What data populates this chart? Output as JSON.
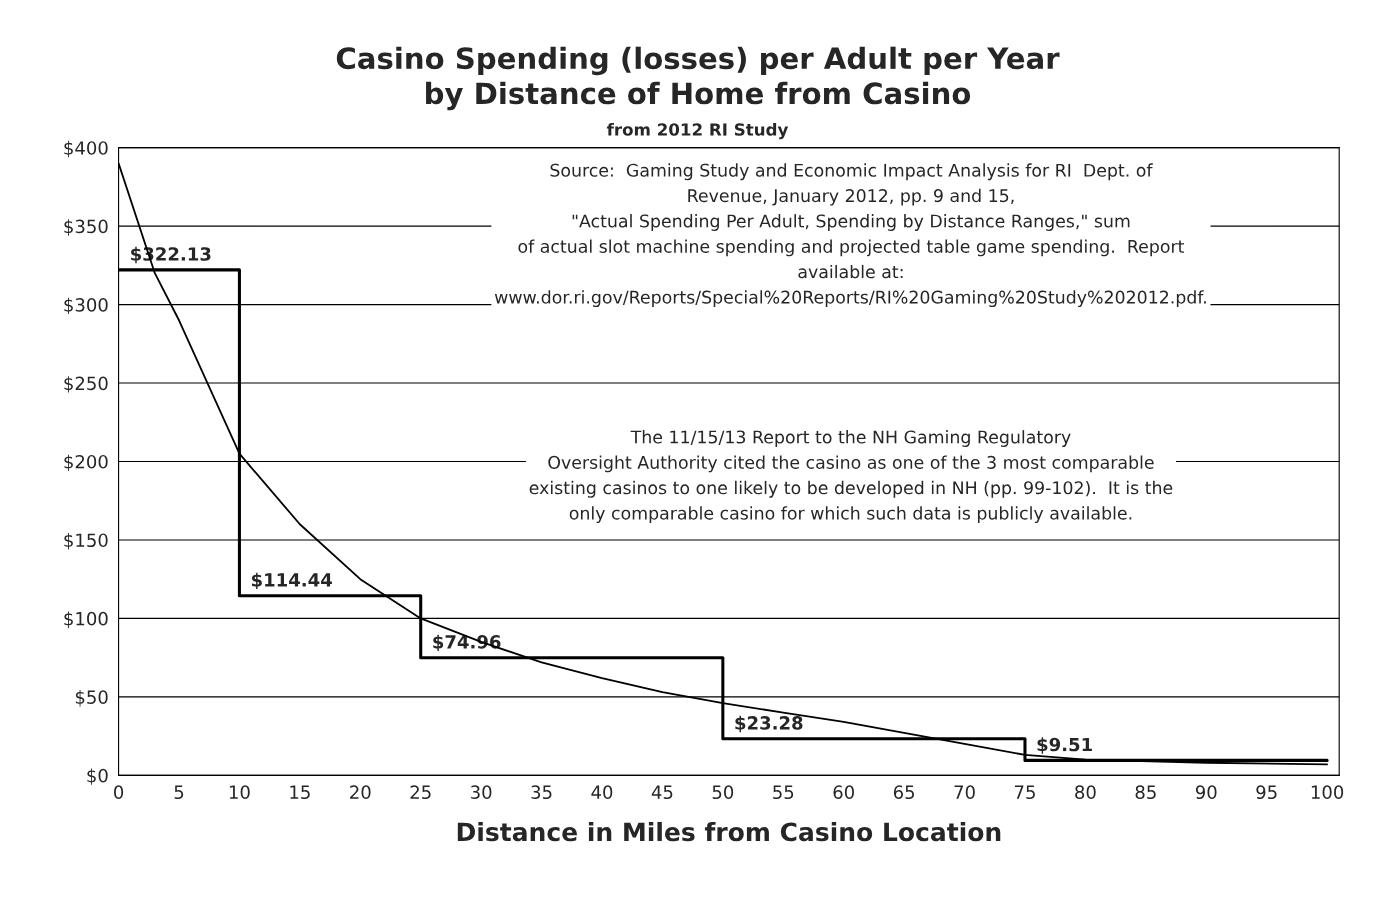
{
  "chart_data": {
    "type": "line",
    "title": "Casino Spending (losses) per Adult per Year\nby Distance of Home from Casino",
    "subtitle": "from 2012 RI Study",
    "xlabel": "Distance in Miles from Casino Location",
    "series": [
      {
        "type": "step",
        "color": "#000000",
        "x": [
          0,
          10,
          25,
          50,
          75,
          100
        ],
        "values": [
          322.13,
          114.44,
          74.96,
          23.28,
          9.51,
          9.51
        ],
        "value_labels": [
          "$322.13",
          "$114.44",
          "$74.96",
          "$23.28",
          "$9.51",
          null
        ]
      },
      {
        "color": "#000000",
        "x": [
          0,
          3,
          5,
          10,
          15,
          20,
          25,
          30,
          35,
          40,
          45,
          50,
          55,
          60,
          65,
          70,
          75,
          80,
          90,
          100
        ],
        "values": [
          390,
          320,
          290,
          205,
          160,
          125,
          100,
          85,
          72,
          62,
          53,
          46,
          40,
          34,
          27,
          20,
          13,
          10,
          8,
          7
        ]
      }
    ],
    "annotations": [
      "Source:  Gaming Study and Economic Impact Analysis for RI  Dept. of\nRevenue, January 2012, pp. 9 and 15,\n\"Actual Spending Per Adult, Spending by Distance Ranges,\" sum\nof actual slot machine spending and projected table game spending.  Report\navailable at:\nwww.dor.ri.gov/Reports/Special%20Reports/RI%20Gaming%20Study%202012.pdf.",
      "The 11/15/13 Report to the NH Gaming Regulatory\nOversight Authority cited the casino as one of the 3 most comparable\nexisting casinos to one likely to be developed in NH (pp. 99-102).  It is the\nonly comparable casino for which such data is publicly available."
    ],
    "xlim": [
      0,
      101
    ],
    "xticks": [
      0,
      5,
      10,
      15,
      20,
      25,
      30,
      35,
      40,
      45,
      50,
      55,
      60,
      65,
      70,
      75,
      80,
      85,
      90,
      95,
      100
    ],
    "ylim": [
      0,
      400
    ],
    "yticks": [
      {
        "value": 0,
        "label": "$0"
      },
      {
        "value": 50,
        "label": "$50"
      },
      {
        "value": 100,
        "label": "$100"
      },
      {
        "value": 150,
        "label": "$150"
      },
      {
        "value": 200,
        "label": "$200"
      },
      {
        "value": 250,
        "label": "$250"
      },
      {
        "value": 300,
        "label": "$300"
      },
      {
        "value": 350,
        "label": "$350"
      },
      {
        "value": 400,
        "label": "$400"
      }
    ],
    "grid": "y",
    "legend": false
  }
}
